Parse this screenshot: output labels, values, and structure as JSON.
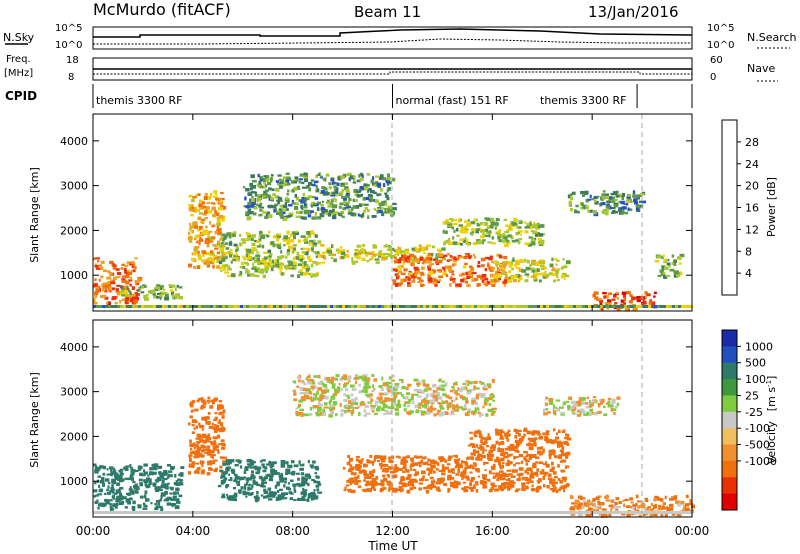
{
  "header": {
    "station": "McMurdo (fitACF)",
    "beam": "Beam 11",
    "date": "13/Jan/2016"
  },
  "panels": {
    "nsky_label": "N.Sky",
    "nsky_ticks": [
      "10^5",
      "10^0"
    ],
    "nsearch_label": "N.Search",
    "nsearch_ticks": [
      "10^5",
      "10^0"
    ],
    "freq_label": "Freq.",
    "freq_unit": "[MHz]",
    "freq_ticks": [
      "18",
      "8"
    ],
    "nave_label": "Nave",
    "nave_ticks": [
      "60",
      "0"
    ],
    "cpid_label": "CPID",
    "cpid_modes": [
      {
        "label": "themis 3300 RF",
        "start_hour": 0,
        "end_hour": 12
      },
      {
        "label": "normal (fast) 151 RF",
        "start_hour": 12,
        "end_hour": 21.8
      },
      {
        "label": "themis 3300 RF",
        "start_hour": 21.8,
        "end_hour": 24
      }
    ]
  },
  "time_axis": {
    "label": "Time UT",
    "ticks": [
      "00:00",
      "04:00",
      "08:00",
      "12:00",
      "16:00",
      "20:00",
      "00:00"
    ],
    "range_hours": [
      0,
      24
    ]
  },
  "range_axis": {
    "label": "Slant Range [km]",
    "ticks": [
      "1000",
      "2000",
      "3000",
      "4000"
    ],
    "range_km": [
      200,
      4600
    ]
  },
  "colorbars": {
    "power": {
      "label": "Power [dB]",
      "ticks": [
        "4",
        "8",
        "12",
        "16",
        "20",
        "24",
        "28"
      ],
      "colors": [
        "#1a1aff",
        "#2a50c8",
        "#3c7a5a",
        "#5c9a4a",
        "#a8c830",
        "#f0d000",
        "#f0a020",
        "#f07010",
        "#e83010",
        "#e00000"
      ]
    },
    "velocity": {
      "label": "Velocity",
      "unit": "[m s",
      "unit_sup": "-1",
      "unit_end": "]",
      "ticks": [
        "1000",
        "500",
        "100",
        "25",
        "-25",
        "-100",
        "-500",
        "-1000"
      ],
      "colors": [
        "#1a2aa8",
        "#2050c0",
        "#2e7a6a",
        "#3c9a3c",
        "#80cc40",
        "#c8c8c8",
        "#f0c060",
        "#f09030",
        "#f07010",
        "#e83000",
        "#e00000"
      ]
    }
  },
  "chart_data": [
    {
      "type": "heatmap",
      "title": "Power",
      "xlabel": "Time UT",
      "ylabel": "Slant Range [km]",
      "xlim": [
        0,
        24
      ],
      "ylim": [
        200,
        4600
      ],
      "colorbar_label": "Power [dB]",
      "colorbar_ticks": [
        4,
        8,
        12,
        16,
        20,
        24,
        28
      ],
      "regions": [
        {
          "t0": 0.0,
          "t1": 1.8,
          "r0": 400,
          "r1": 1400,
          "level_db": 24
        },
        {
          "t0": 1.0,
          "t1": 3.5,
          "r0": 500,
          "r1": 800,
          "level_db": 12
        },
        {
          "t0": 3.8,
          "t1": 5.2,
          "r0": 1200,
          "r1": 2900,
          "level_db": 20
        },
        {
          "t0": 5.0,
          "t1": 9.0,
          "r0": 1000,
          "r1": 2000,
          "level_db": 14
        },
        {
          "t0": 6.0,
          "t1": 12.0,
          "r0": 2300,
          "r1": 3300,
          "level_db": 10
        },
        {
          "t0": 9.0,
          "t1": 14.0,
          "r0": 1300,
          "r1": 1700,
          "level_db": 16
        },
        {
          "t0": 12.0,
          "t1": 16.5,
          "r0": 800,
          "r1": 1500,
          "level_db": 24
        },
        {
          "t0": 14.0,
          "t1": 18.0,
          "r0": 1700,
          "r1": 2300,
          "level_db": 14
        },
        {
          "t0": 16.0,
          "t1": 19.0,
          "r0": 900,
          "r1": 1400,
          "level_db": 16
        },
        {
          "t0": 19.0,
          "t1": 22.0,
          "r0": 2400,
          "r1": 2900,
          "level_db": 10
        },
        {
          "t0": 20.0,
          "t1": 22.5,
          "r0": 250,
          "r1": 650,
          "level_db": 26
        },
        {
          "t0": 22.5,
          "t1": 23.5,
          "r0": 1000,
          "r1": 1500,
          "level_db": 12
        }
      ]
    },
    {
      "type": "heatmap",
      "title": "Velocity",
      "xlabel": "Time UT",
      "ylabel": "Slant Range [km]",
      "xlim": [
        0,
        24
      ],
      "ylim": [
        200,
        4600
      ],
      "colorbar_label": "Velocity [m s-1]",
      "colorbar_ticks": [
        1000,
        500,
        100,
        25,
        -25,
        -100,
        -500,
        -1000
      ],
      "regions": [
        {
          "t0": 0.0,
          "t1": 3.5,
          "r0": 400,
          "r1": 1400,
          "velocity": 300
        },
        {
          "t0": 3.8,
          "t1": 5.2,
          "r0": 1200,
          "r1": 2900,
          "velocity": -200
        },
        {
          "t0": 5.0,
          "t1": 9.0,
          "r0": 600,
          "r1": 1500,
          "velocity": 200
        },
        {
          "t0": 8.0,
          "t1": 12.0,
          "r0": 2500,
          "r1": 3400,
          "velocity": 0
        },
        {
          "t0": 12.0,
          "t1": 16.0,
          "r0": 2500,
          "r1": 3300,
          "velocity": 0
        },
        {
          "t0": 10.0,
          "t1": 19.0,
          "r0": 800,
          "r1": 1600,
          "velocity": -300
        },
        {
          "t0": 15.0,
          "t1": 19.0,
          "r0": 1600,
          "r1": 2200,
          "velocity": -300
        },
        {
          "t0": 18.0,
          "t1": 21.0,
          "r0": 2500,
          "r1": 2900,
          "velocity": 0
        },
        {
          "t0": 19.0,
          "t1": 24.0,
          "r0": 250,
          "r1": 700,
          "velocity": -100
        }
      ]
    }
  ]
}
